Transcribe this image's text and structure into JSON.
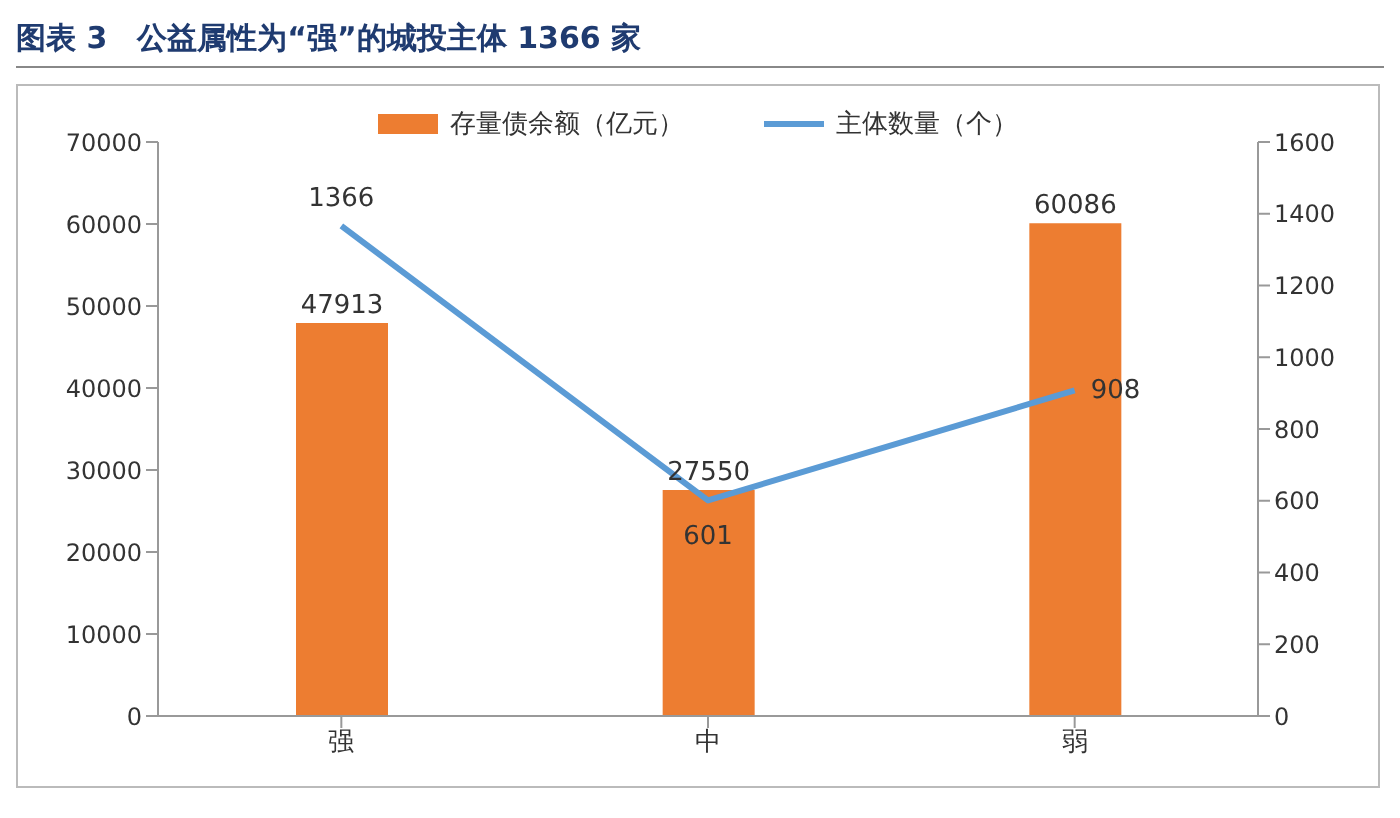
{
  "chart_data": {
    "type": "bar",
    "title": "图表 3　公益属性为“强”的城投主体 1366 家",
    "categories": [
      "强",
      "中",
      "弱"
    ],
    "series": [
      {
        "name": "存量债余额（亿元）",
        "color": "#ed7d31",
        "values": [
          47913,
          27550,
          60086
        ]
      },
      {
        "name": "主体数量（个）",
        "type": "line",
        "axis": "y2",
        "color": "#5b9bd5",
        "values": [
          1366,
          601,
          908
        ]
      }
    ],
    "ylim": [
      0,
      70000
    ],
    "yticks": [
      0,
      10000,
      20000,
      30000,
      40000,
      50000,
      60000,
      70000
    ],
    "y2lim": [
      0,
      1600
    ],
    "y2ticks": [
      0,
      200,
      400,
      600,
      800,
      1000,
      1200,
      1400,
      1600
    ],
    "data_labels": true,
    "legend": "top",
    "grid": false,
    "marker": "none"
  }
}
